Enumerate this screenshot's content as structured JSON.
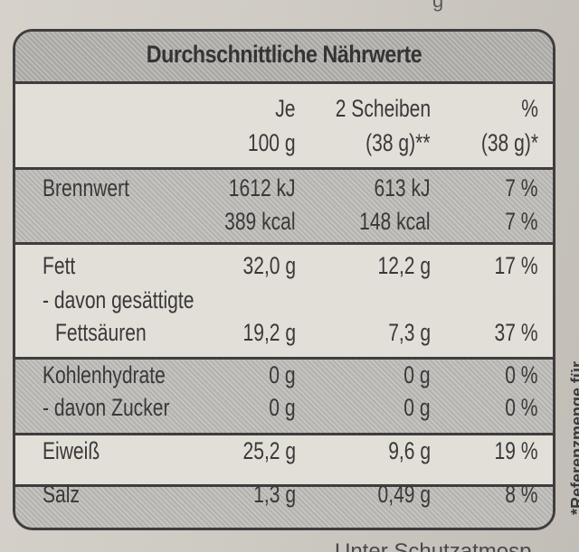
{
  "title": "Durchschnittliche Nährwerte",
  "header": {
    "col1": [
      "Je",
      "100 g"
    ],
    "col2": [
      "2 Scheiben",
      "(38 g)**"
    ],
    "col3": [
      "%",
      "(38 g)*"
    ]
  },
  "rows": [
    {
      "label": "Brennwert",
      "col1": "1612 kJ",
      "col2": "613 kJ",
      "col3": "7 %"
    },
    {
      "label": "",
      "col1": "389 kcal",
      "col2": "148 kcal",
      "col3": "7 %"
    },
    {
      "label": "Fett",
      "col1": "32,0 g",
      "col2": "12,2 g",
      "col3": "17 %"
    },
    {
      "label": "- davon gesättigte",
      "col1": "",
      "col2": "",
      "col3": ""
    },
    {
      "label": "Fettsäuren",
      "col1": "19,2 g",
      "col2": "7,3 g",
      "col3": "37 %"
    },
    {
      "label": "Kohlenhydrate",
      "col1": "0 g",
      "col2": "0 g",
      "col3": "0 %"
    },
    {
      "label": "- davon Zucker",
      "col1": "0 g",
      "col2": "0 g",
      "col3": "0 %"
    },
    {
      "label": "Eiweiß",
      "col1": "25,2 g",
      "col2": "9,6 g",
      "col3": "19 %"
    },
    {
      "label": "Salz",
      "col1": "1,3 g",
      "col2": "0,49 g",
      "col3": "8 %"
    }
  ],
  "side_text": "*Referenzmenge für",
  "bottom_text": "Unter Schutzatmosp",
  "top_text": "g"
}
